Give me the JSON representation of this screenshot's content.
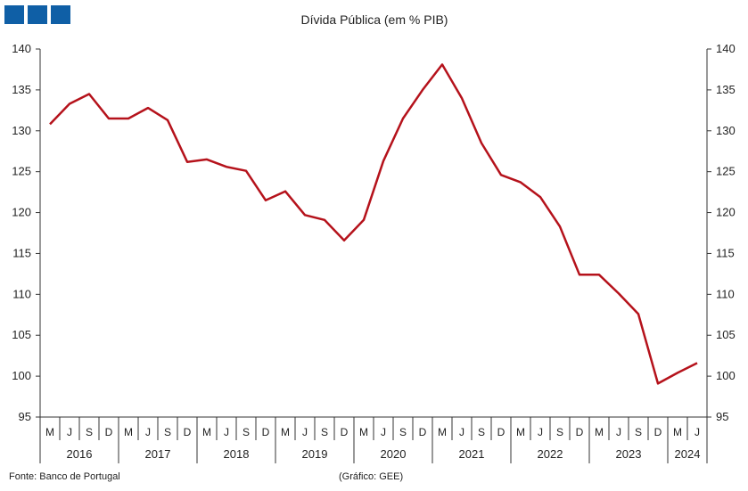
{
  "brand": {
    "logo_color": "#0f5fa6"
  },
  "chart_data": {
    "type": "line",
    "title": "Dívida Pública (em % PIB)",
    "source": "Fonte: Banco de Portugal",
    "credit": "(Gráfico: GEE)",
    "ylim": [
      95,
      140
    ],
    "yticks": [
      95,
      100,
      105,
      110,
      115,
      120,
      125,
      130,
      135,
      140
    ],
    "grid": false,
    "legend": "none",
    "line_color": "#b5121b",
    "x": [
      "M",
      "J",
      "S",
      "D",
      "M",
      "J",
      "S",
      "D",
      "M",
      "J",
      "S",
      "D",
      "M",
      "J",
      "S",
      "D",
      "M",
      "J",
      "S",
      "D",
      "M",
      "J",
      "S",
      "D",
      "M",
      "J",
      "S",
      "D",
      "M",
      "J",
      "S",
      "D",
      "M",
      "J"
    ],
    "years": [
      {
        "label": "2016",
        "span": 4
      },
      {
        "label": "2017",
        "span": 4
      },
      {
        "label": "2018",
        "span": 4
      },
      {
        "label": "2019",
        "span": 4
      },
      {
        "label": "2020",
        "span": 4
      },
      {
        "label": "2021",
        "span": 4
      },
      {
        "label": "2022",
        "span": 4
      },
      {
        "label": "2023",
        "span": 4
      },
      {
        "label": "2024",
        "span": 2
      }
    ],
    "series": [
      {
        "values": [
          130.8,
          133.3,
          134.5,
          131.5,
          131.5,
          132.8,
          131.3,
          126.2,
          126.5,
          125.6,
          125.1,
          121.5,
          122.6,
          119.7,
          119.1,
          116.6,
          119.1,
          126.3,
          131.5,
          135.0,
          138.1,
          134.0,
          128.5,
          124.6,
          123.7,
          121.9,
          118.3,
          112.4,
          112.4,
          110.1,
          107.6,
          99.1,
          100.4,
          101.6
        ]
      }
    ]
  }
}
